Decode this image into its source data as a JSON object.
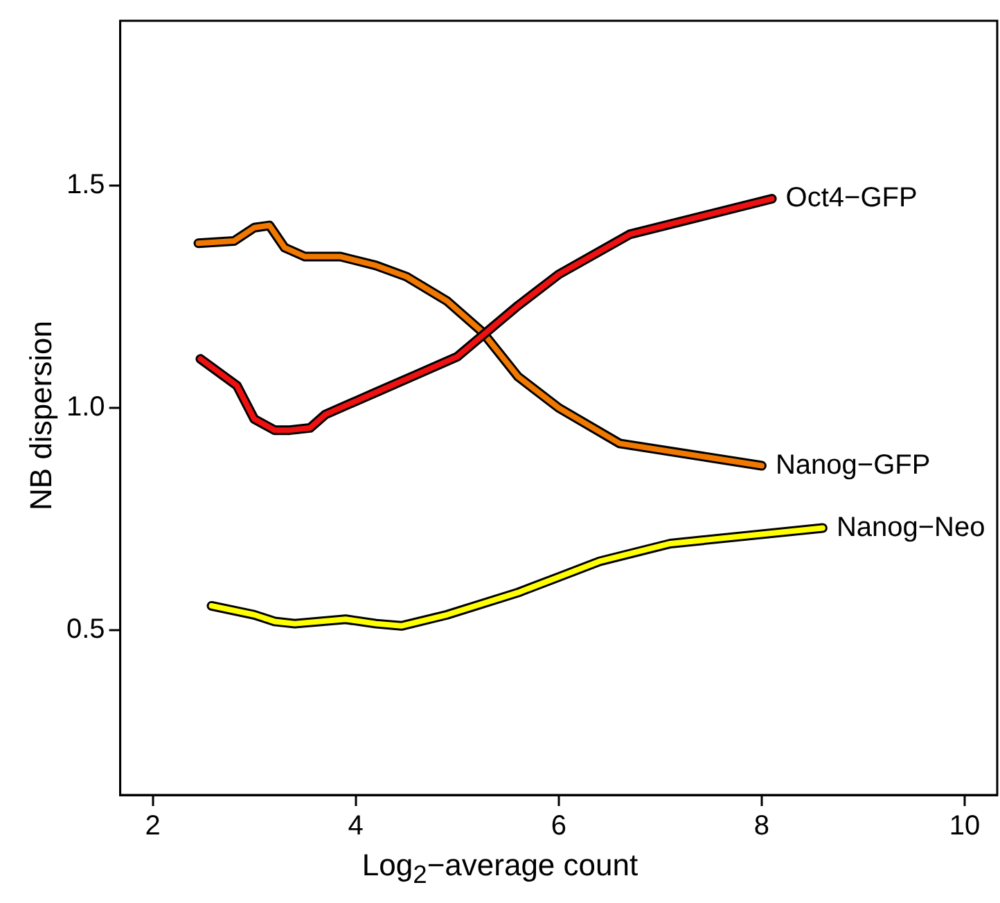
{
  "chart_data": {
    "type": "line",
    "xlabel": "Log$_{2}$−average count",
    "ylabel": "NB dispersion",
    "xlim": [
      1.68,
      10.32
    ],
    "ylim": [
      0.13,
      1.87
    ],
    "xticks": [
      2,
      4,
      6,
      8,
      10
    ],
    "yticks": [
      {
        "value": 0.5,
        "label": "0.5"
      },
      {
        "value": 1,
        "label": "1.0"
      },
      {
        "value": 1.5,
        "label": "1.5"
      }
    ],
    "grid": false,
    "legend": false,
    "marker": "none",
    "line_style": "solid",
    "series": [
      {
        "name": "Oct4−GFP",
        "color": "#ee1111",
        "x": [
          2.47,
          2.83,
          3.0,
          3.2,
          3.35,
          3.55,
          3.7,
          4.2,
          4.6,
          5.0,
          5.6,
          6.0,
          6.7,
          8.1
        ],
        "values": [
          1.11,
          1.05,
          0.975,
          0.95,
          0.95,
          0.955,
          0.985,
          1.035,
          1.075,
          1.115,
          1.23,
          1.3,
          1.39,
          1.47
        ]
      },
      {
        "name": "Nanog−GFP",
        "color": "#f07800",
        "x": [
          2.45,
          2.8,
          3.0,
          3.15,
          3.3,
          3.5,
          3.85,
          4.2,
          4.5,
          4.9,
          5.25,
          5.6,
          6.0,
          6.6,
          8.0
        ],
        "values": [
          1.37,
          1.375,
          1.405,
          1.41,
          1.36,
          1.34,
          1.34,
          1.32,
          1.295,
          1.24,
          1.17,
          1.07,
          1.0,
          0.92,
          0.87
        ]
      },
      {
        "name": "Nanog−Neo",
        "color": "#ffff00",
        "x": [
          2.58,
          3.0,
          3.2,
          3.4,
          3.9,
          4.2,
          4.45,
          4.9,
          5.6,
          6.0,
          6.4,
          7.1,
          8.6
        ],
        "values": [
          0.555,
          0.535,
          0.52,
          0.515,
          0.525,
          0.515,
          0.51,
          0.535,
          0.585,
          0.62,
          0.655,
          0.695,
          0.73
        ]
      }
    ]
  }
}
